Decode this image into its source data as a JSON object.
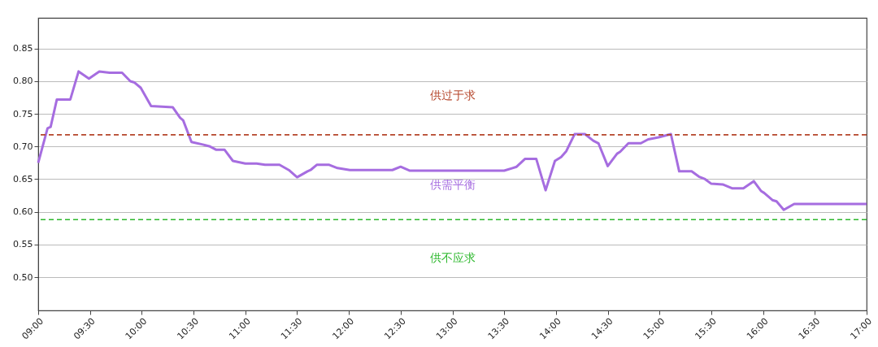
{
  "chart_data": {
    "type": "line",
    "x": [
      9.0,
      9.09,
      9.12,
      9.18,
      9.31,
      9.39,
      9.49,
      9.59,
      9.69,
      9.81,
      9.89,
      9.93,
      9.99,
      10.09,
      10.3,
      10.37,
      10.4,
      10.48,
      10.59,
      10.66,
      10.72,
      10.8,
      10.88,
      11.0,
      11.11,
      11.19,
      11.33,
      11.42,
      11.5,
      11.6,
      11.63,
      11.69,
      11.81,
      11.89,
      12.01,
      12.42,
      12.5,
      12.59,
      13.5,
      13.58,
      13.62,
      13.7,
      13.81,
      13.9,
      13.99,
      14.05,
      14.1,
      14.18,
      14.28,
      14.36,
      14.41,
      14.5,
      14.59,
      14.62,
      14.7,
      14.82,
      14.89,
      14.99,
      15.11,
      15.19,
      15.31,
      15.38,
      15.44,
      15.5,
      15.61,
      15.7,
      15.81,
      15.91,
      15.98,
      16.01,
      16.09,
      16.13,
      16.2,
      16.3,
      17.0
    ],
    "series": [
      {
        "color": "#a66de0",
        "values": [
          0.675,
          0.728,
          0.73,
          0.772,
          0.772,
          0.815,
          0.804,
          0.815,
          0.813,
          0.813,
          0.8,
          0.798,
          0.79,
          0.762,
          0.76,
          0.744,
          0.74,
          0.707,
          0.703,
          0.7,
          0.695,
          0.695,
          0.678,
          0.674,
          0.674,
          0.672,
          0.672,
          0.664,
          0.653,
          0.662,
          0.664,
          0.672,
          0.672,
          0.667,
          0.664,
          0.664,
          0.669,
          0.663,
          0.663,
          0.667,
          0.669,
          0.681,
          0.681,
          0.633,
          0.678,
          0.684,
          0.693,
          0.719,
          0.719,
          0.709,
          0.705,
          0.67,
          0.689,
          0.692,
          0.705,
          0.705,
          0.711,
          0.714,
          0.719,
          0.662,
          0.662,
          0.654,
          0.65,
          0.643,
          0.642,
          0.636,
          0.636,
          0.647,
          0.632,
          0.629,
          0.618,
          0.616,
          0.603,
          0.612,
          0.612
        ]
      }
    ],
    "xlim": [
      9,
      17
    ],
    "xticks": [
      {
        "value": 9,
        "label": "09:00"
      },
      {
        "value": 9.5,
        "label": "09:30"
      },
      {
        "value": 10,
        "label": "10:00"
      },
      {
        "value": 10.5,
        "label": "10:30"
      },
      {
        "value": 11,
        "label": "11:00"
      },
      {
        "value": 11.5,
        "label": "11:30"
      },
      {
        "value": 12,
        "label": "12:00"
      },
      {
        "value": 12.5,
        "label": "12:30"
      },
      {
        "value": 13,
        "label": "13:00"
      },
      {
        "value": 13.5,
        "label": "13:30"
      },
      {
        "value": 14,
        "label": "14:00"
      },
      {
        "value": 14.5,
        "label": "14:30"
      },
      {
        "value": 15,
        "label": "15:00"
      },
      {
        "value": 15.5,
        "label": "15:30"
      },
      {
        "value": 16,
        "label": "16:00"
      },
      {
        "value": 16.5,
        "label": "16:30"
      },
      {
        "value": 17,
        "label": "17:00"
      }
    ],
    "ylim": [
      0.449,
      0.897
    ],
    "yticks": [
      {
        "value": 0.5,
        "label": "0.50"
      },
      {
        "value": 0.55,
        "label": "0.55"
      },
      {
        "value": 0.6,
        "label": "0.60"
      },
      {
        "value": 0.65,
        "label": "0.65"
      },
      {
        "value": 0.7,
        "label": "0.70"
      },
      {
        "value": 0.75,
        "label": "0.75"
      },
      {
        "value": 0.8,
        "label": "0.80"
      },
      {
        "value": 0.85,
        "label": "0.85"
      }
    ],
    "grid": "y",
    "ref_lines": [
      {
        "axis": "y",
        "value": 0.718,
        "color": "#b5452a",
        "line_style": "dashed"
      },
      {
        "axis": "y",
        "value": 0.588,
        "color": "#2db82d",
        "line_style": "dashed"
      }
    ],
    "annotations": [
      "供过于求",
      "供需平衡",
      "供不应求"
    ]
  }
}
